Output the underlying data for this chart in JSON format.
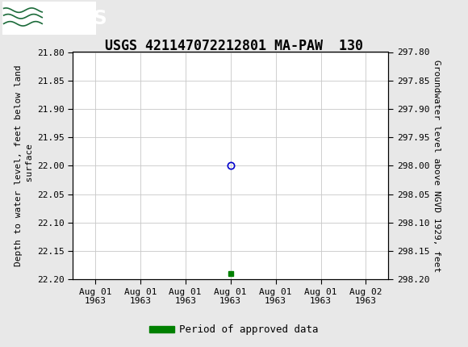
{
  "title": "USGS 421147072212801 MA-PAW  130",
  "ylabel_left": "Depth to water level, feet below land\n surface",
  "ylabel_right": "Groundwater level above NGVD 1929, feet",
  "ylim_left": [
    21.8,
    22.2
  ],
  "ylim_right": [
    298.2,
    297.8
  ],
  "yticks_left": [
    21.8,
    21.85,
    21.9,
    21.95,
    22.0,
    22.05,
    22.1,
    22.15,
    22.2
  ],
  "yticks_right": [
    298.2,
    298.15,
    298.1,
    298.05,
    298.0,
    297.95,
    297.9,
    297.85,
    297.8
  ],
  "background_color": "#ffffff",
  "plot_bg_color": "#ffffff",
  "header_color": "#1c6b3a",
  "grid_color": "#c8c8c8",
  "open_circle_color": "#0000cc",
  "approved_color": "#008000",
  "legend_label": "Period of approved data",
  "title_fontsize": 12,
  "tick_fontsize": 8,
  "ylabel_fontsize": 8,
  "data_point_depth": 22.0,
  "approved_point_depth": 22.19,
  "tick_labels": [
    "Aug 01\n1963",
    "Aug 01\n1963",
    "Aug 01\n1963",
    "Aug 01\n1963",
    "Aug 01\n1963",
    "Aug 01\n1963",
    "Aug 02\n1963"
  ]
}
